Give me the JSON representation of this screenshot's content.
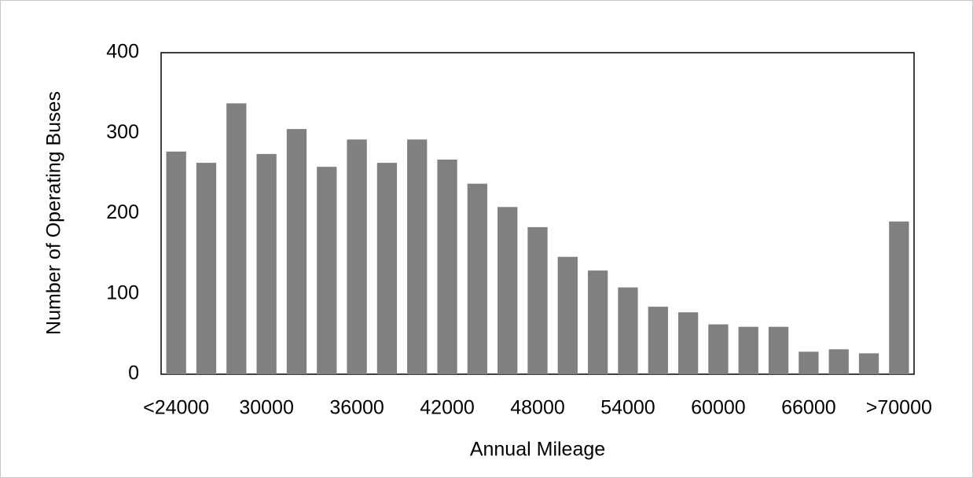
{
  "chart_data": {
    "type": "bar",
    "x_label": "Annual Mileage",
    "y_label": "Number of Operating Buses",
    "categories": [
      "<24000",
      null,
      null,
      "30000",
      null,
      null,
      "36000",
      null,
      null,
      "42000",
      null,
      null,
      "48000",
      null,
      null,
      "54000",
      null,
      null,
      "60000",
      null,
      null,
      "66000",
      null,
      null,
      ">70000"
    ],
    "values": [
      277,
      263,
      337,
      274,
      305,
      258,
      292,
      263,
      292,
      267,
      237,
      208,
      183,
      146,
      129,
      108,
      84,
      77,
      62,
      59,
      59,
      28,
      31,
      26,
      190
    ],
    "color": "#808080",
    "ylim": [
      0,
      400
    ],
    "yticks": [
      0,
      100,
      200,
      300,
      400
    ],
    "grid": false
  }
}
